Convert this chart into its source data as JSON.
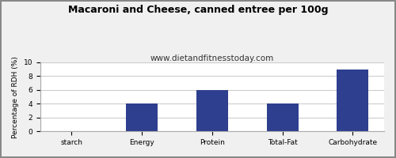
{
  "title": "Macaroni and Cheese, canned entree per 100g",
  "subtitle": "www.dietandfitnesstoday.com",
  "categories": [
    "starch",
    "Energy",
    "Protein",
    "Total-Fat",
    "Carbohydrate"
  ],
  "values": [
    0,
    4,
    6,
    4,
    9
  ],
  "bar_color": "#2e3f8f",
  "ylabel": "Percentage of RDH (%)",
  "ylim": [
    0,
    10
  ],
  "yticks": [
    0,
    2,
    4,
    6,
    8,
    10
  ],
  "background_color": "#f0f0f0",
  "plot_bg_color": "#ffffff",
  "title_fontsize": 9,
  "subtitle_fontsize": 7.5,
  "ylabel_fontsize": 6.5,
  "tick_fontsize": 6.5,
  "bar_width": 0.45
}
